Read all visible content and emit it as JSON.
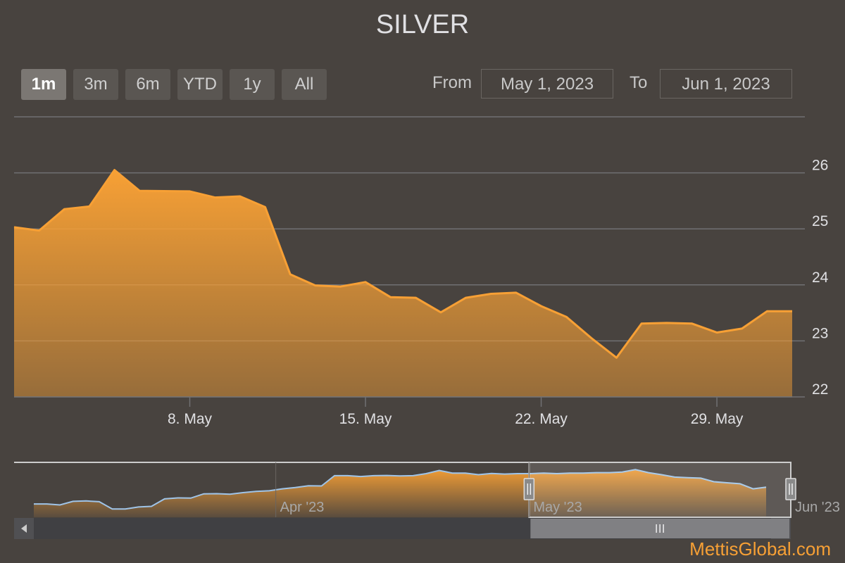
{
  "title": "SILVER",
  "range_selector": {
    "buttons": [
      {
        "label": "1m",
        "active": true
      },
      {
        "label": "3m",
        "active": false
      },
      {
        "label": "6m",
        "active": false
      },
      {
        "label": "YTD",
        "active": false
      },
      {
        "label": "1y",
        "active": false
      },
      {
        "label": "All",
        "active": false
      }
    ],
    "from_label": "From",
    "from_value": "May 1, 2023",
    "to_label": "To",
    "to_value": "Jun 1, 2023"
  },
  "credit": "MettisGlobal.com",
  "colors": {
    "line": "#f7a035",
    "background": "#48433f",
    "navigator_line": "#9fc4e8"
  },
  "chart_data": {
    "type": "area",
    "series": [
      {
        "x": [
          "2023-05-01",
          "2023-05-02",
          "2023-05-03",
          "2023-05-04",
          "2023-05-05",
          "2023-05-06",
          "2023-05-08",
          "2023-05-09",
          "2023-05-10",
          "2023-05-11",
          "2023-05-12",
          "2023-05-13",
          "2023-05-14",
          "2023-05-15",
          "2023-05-16",
          "2023-05-17",
          "2023-05-18",
          "2023-05-19",
          "2023-05-20",
          "2023-05-21",
          "2023-05-22",
          "2023-05-23",
          "2023-05-24",
          "2023-05-25",
          "2023-05-26",
          "2023-05-27",
          "2023-05-28",
          "2023-05-29",
          "2023-05-30",
          "2023-05-31",
          "2023-06-01"
        ],
        "values": [
          25.03,
          24.97,
          25.35,
          25.4,
          26.05,
          25.68,
          25.67,
          25.56,
          25.58,
          25.39,
          24.19,
          23.99,
          23.97,
          24.05,
          23.78,
          23.77,
          23.51,
          23.77,
          23.84,
          23.86,
          23.62,
          23.43,
          23.05,
          22.7,
          23.31,
          23.32,
          23.31,
          23.15,
          23.22,
          23.53,
          23.53
        ]
      }
    ],
    "x_tick_labels": [
      "8. May",
      "15. May",
      "22. May",
      "29. May"
    ],
    "y_tick_labels": [
      "22",
      "23",
      "24",
      "25",
      "26"
    ],
    "xlim": [
      "2023-05-01",
      "2023-06-01"
    ],
    "ylim": [
      22,
      27
    ],
    "grid": true,
    "navigator": {
      "labels": [
        "Apr '23",
        "May '23",
        "Jun '23"
      ],
      "range": [
        "2023-03-01",
        "2023-06-01"
      ],
      "selected": [
        "2023-05-01",
        "2023-06-01"
      ],
      "values": [
        25.45,
        25.45,
        25.4,
        25.58,
        25.6,
        25.56,
        25.2,
        25.2,
        25.3,
        25.33,
        25.7,
        25.75,
        25.74,
        25.95,
        25.96,
        25.93,
        26.01,
        26.07,
        26.1,
        26.2,
        26.26,
        26.35,
        26.34,
        26.85,
        26.85,
        26.81,
        26.85,
        26.86,
        26.84,
        26.85,
        26.95,
        27.11,
        26.98,
        26.98,
        26.9,
        26.96,
        26.93,
        26.95,
        26.95,
        26.98,
        26.95,
        26.98,
        26.98,
        27.0,
        27.0,
        27.03,
        27.15,
        27.0,
        26.9,
        26.78,
        26.75,
        26.73,
        26.55,
        26.5,
        26.45,
        26.2,
        26.28
      ]
    }
  }
}
